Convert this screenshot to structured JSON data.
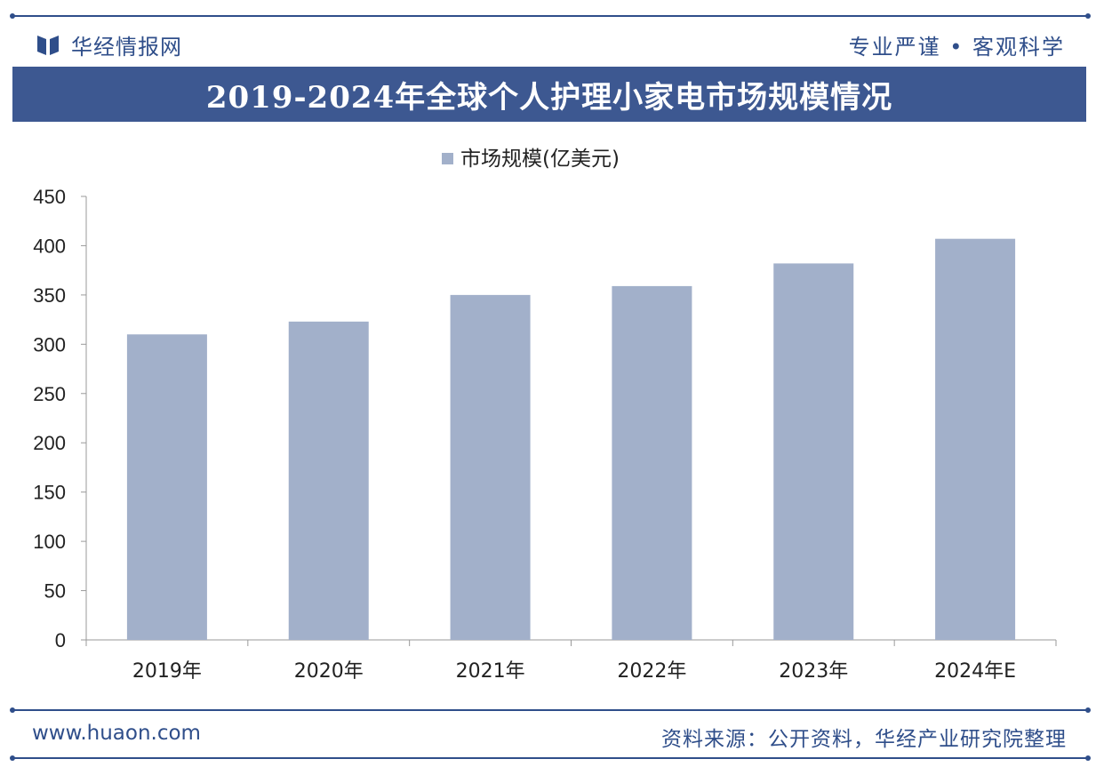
{
  "header": {
    "brand_name": "华经情报网",
    "slogan": "专业严谨 • 客观科学"
  },
  "title": "2019-2024年全球个人护理小家电市场规模情况",
  "colors": {
    "brand": "#2f4e8a",
    "title_bar": "#3d5891",
    "bar": "#a2b0ca"
  },
  "chart_data": {
    "type": "bar",
    "categories": [
      "2019年",
      "2020年",
      "2021年",
      "2022年",
      "2023年",
      "2024年E"
    ],
    "series": [
      {
        "name": "市场规模(亿美元)",
        "values": [
          310,
          323,
          350,
          359,
          382,
          407
        ]
      }
    ],
    "ylim": [
      0,
      450
    ],
    "yticks": [
      0,
      50,
      100,
      150,
      200,
      250,
      300,
      350,
      400,
      450
    ],
    "grid": false,
    "legend_position": "top-center",
    "xlabel": "",
    "ylabel": ""
  },
  "footer": {
    "website": "www.huaon.com",
    "source": "资料来源：公开资料，华经产业研究院整理"
  }
}
